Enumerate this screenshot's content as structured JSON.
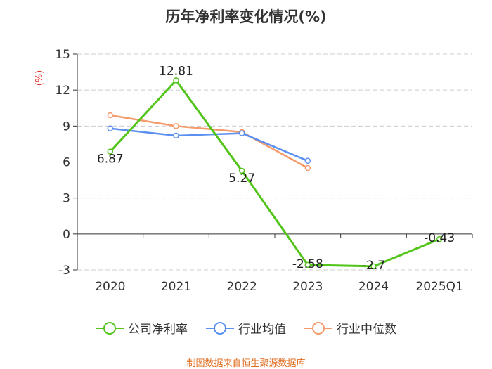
{
  "title": "历年净利率变化情况(%)",
  "source": "制图数据来自恒生聚源数据库",
  "colors": {
    "company": "#52c41a",
    "industry_avg": "#5b8ff0",
    "industry_median": "#f59a6a",
    "ylabel": "#e0322b",
    "axis": "#333333",
    "grid": "#cccccc"
  },
  "chart_data": {
    "type": "line",
    "title": "历年净利率变化情况(%)",
    "ylabel": "(%)",
    "xlabel": "",
    "categories": [
      "2020",
      "2021",
      "2022",
      "2023",
      "2024",
      "2025Q1"
    ],
    "ylim": [
      -3,
      15
    ],
    "yticks": [
      -3,
      0,
      3,
      6,
      9,
      12,
      15
    ],
    "grid": true,
    "legend_position": "bottom",
    "series": [
      {
        "name": "公司净利率",
        "key": "company",
        "values": [
          6.87,
          12.81,
          5.27,
          -2.58,
          -2.7,
          -0.43
        ],
        "labels": [
          "6.87",
          "12.81",
          "5.27",
          "-2.58",
          "-2.7",
          "-0.43"
        ],
        "show_labels": true
      },
      {
        "name": "行业均值",
        "key": "industry_avg",
        "values": [
          8.8,
          8.2,
          8.4,
          6.1,
          null,
          null
        ],
        "show_labels": false
      },
      {
        "name": "行业中位数",
        "key": "industry_median",
        "values": [
          9.9,
          9.0,
          8.5,
          5.5,
          null,
          null
        ],
        "show_labels": false
      }
    ]
  },
  "legend": [
    {
      "label": "公司净利率",
      "color_key": "company"
    },
    {
      "label": "行业均值",
      "color_key": "industry_avg"
    },
    {
      "label": "行业中位数",
      "color_key": "industry_median"
    }
  ]
}
